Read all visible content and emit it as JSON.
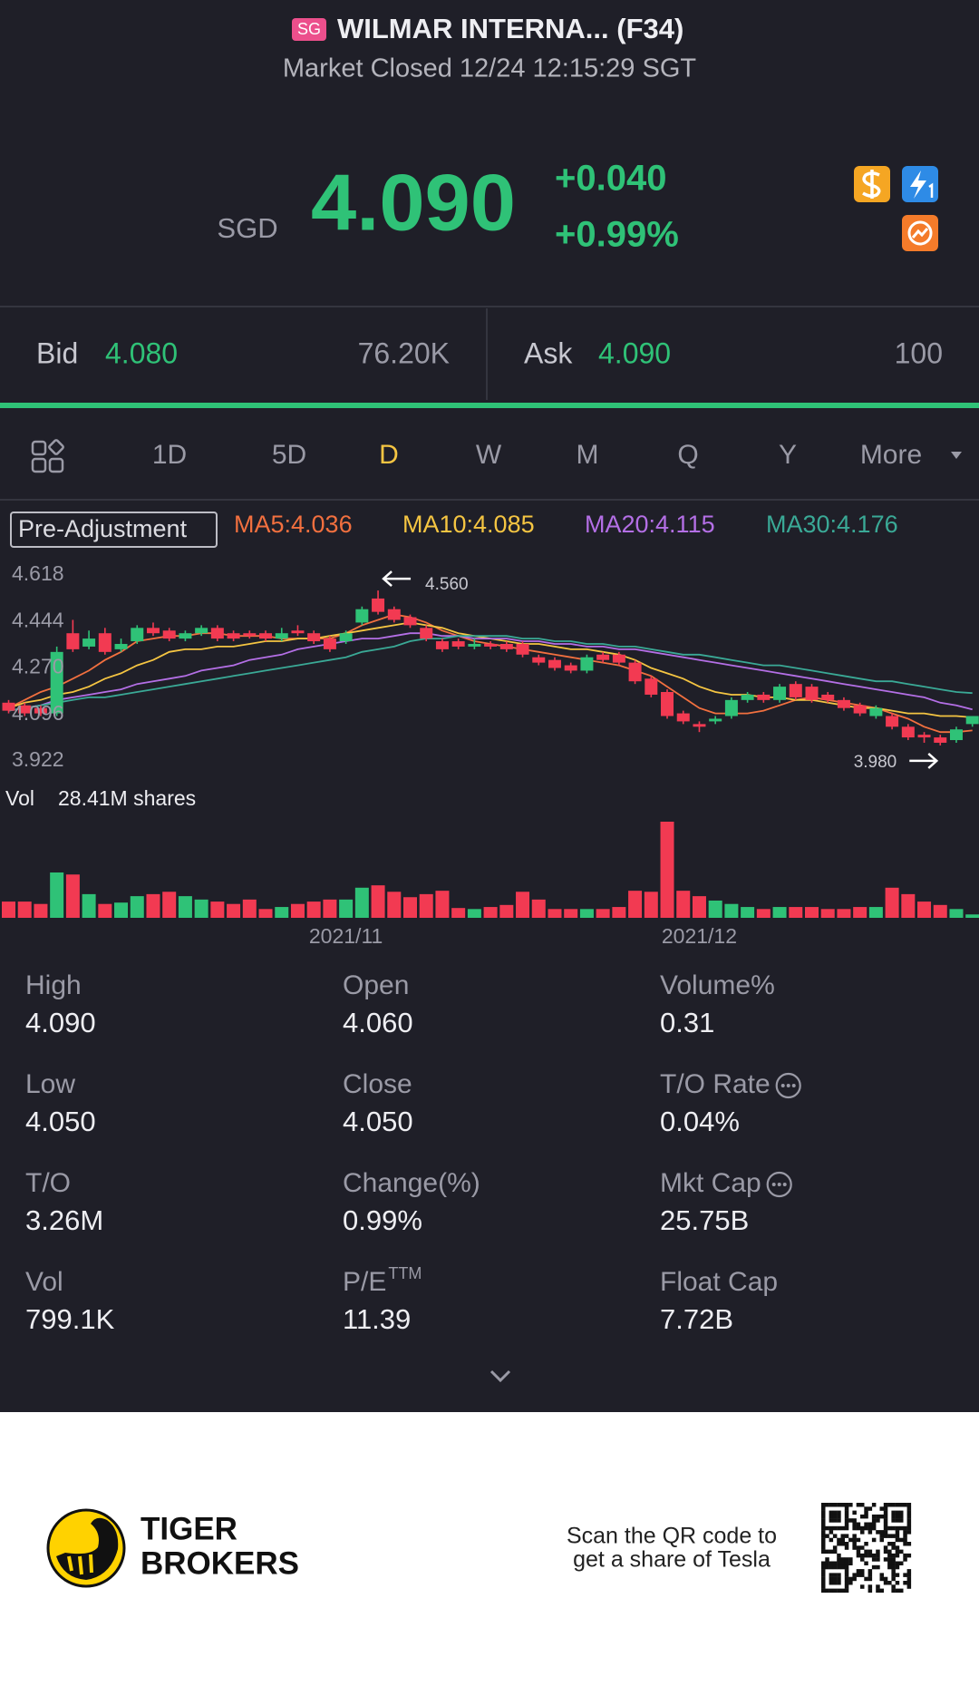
{
  "header": {
    "badge": "SG",
    "title": "WILMAR INTERNA... (F34)",
    "status": "Market Closed 12/24 12:15:29 SGT",
    "currency": "SGD",
    "price": "4.090",
    "change": "+0.040",
    "change_pct": "+0.99%"
  },
  "quote": {
    "bid_label": "Bid",
    "bid": "4.080",
    "bid_size": "76.20K",
    "ask_label": "Ask",
    "ask": "4.090",
    "ask_size": "100"
  },
  "tabs": [
    "1D",
    "5D",
    "D",
    "W",
    "M",
    "Q",
    "Y",
    "More"
  ],
  "active_tab": 2,
  "chart_data": {
    "type": "candlestick",
    "adjustment": "Pre-Adjustment",
    "up_color": "#2fc277",
    "down_color": "#f23a52",
    "grid": false,
    "ylim": [
      3.922,
      4.618
    ],
    "yticks": [
      4.618,
      4.444,
      {
        "value": 4.27,
        "label": "4.270"
      },
      4.096,
      3.922
    ],
    "categories": [
      null,
      null,
      null,
      null,
      null,
      null,
      null,
      null,
      null,
      null,
      null,
      null,
      null,
      null,
      null,
      null,
      null,
      null,
      null,
      null,
      null,
      "2021/11",
      null,
      null,
      null,
      null,
      null,
      null,
      null,
      null,
      null,
      null,
      null,
      null,
      null,
      null,
      null,
      null,
      null,
      null,
      null,
      null,
      null,
      "2021/12",
      null,
      null,
      null,
      null,
      null,
      null,
      null,
      null,
      null,
      null,
      null,
      null,
      null,
      null,
      null,
      null,
      null
    ],
    "open": [
      4.14,
      4.13,
      4.12,
      4.1,
      4.4,
      4.35,
      4.4,
      4.34,
      4.37,
      4.42,
      4.41,
      4.38,
      4.4,
      4.42,
      4.4,
      4.4,
      4.4,
      4.38,
      4.41,
      4.4,
      4.38,
      4.37,
      4.44,
      4.53,
      4.49,
      4.46,
      4.42,
      4.37,
      4.37,
      4.35,
      4.36,
      4.36,
      4.36,
      4.31,
      4.3,
      4.28,
      4.26,
      4.32,
      4.32,
      4.29,
      4.23,
      4.18,
      4.1,
      4.06,
      4.07,
      4.09,
      4.15,
      4.17,
      4.15,
      4.21,
      4.2,
      4.17,
      4.15,
      4.13,
      4.09,
      4.09,
      4.05,
      4.02,
      4.01,
      4.0,
      4.06
    ],
    "high": [
      4.15,
      4.14,
      4.13,
      4.35,
      4.45,
      4.41,
      4.42,
      4.38,
      4.43,
      4.44,
      4.42,
      4.41,
      4.43,
      4.43,
      4.41,
      4.41,
      4.41,
      4.42,
      4.43,
      4.41,
      4.39,
      4.41,
      4.5,
      4.56,
      4.5,
      4.47,
      4.43,
      4.38,
      4.38,
      4.38,
      4.37,
      4.37,
      4.37,
      4.32,
      4.31,
      4.29,
      4.32,
      4.33,
      4.33,
      4.3,
      4.24,
      4.19,
      4.11,
      4.07,
      4.09,
      4.16,
      4.18,
      4.18,
      4.21,
      4.22,
      4.21,
      4.18,
      4.16,
      4.14,
      4.13,
      4.1,
      4.06,
      4.03,
      4.02,
      4.05,
      4.09
    ],
    "low": [
      4.1,
      4.09,
      4.09,
      4.09,
      4.33,
      4.34,
      4.32,
      4.33,
      4.36,
      4.39,
      4.37,
      4.37,
      4.39,
      4.37,
      4.37,
      4.38,
      4.37,
      4.37,
      4.39,
      4.36,
      4.33,
      4.36,
      4.43,
      4.47,
      4.44,
      4.42,
      4.37,
      4.33,
      4.34,
      4.34,
      4.34,
      4.33,
      4.31,
      4.28,
      4.26,
      4.25,
      4.25,
      4.29,
      4.28,
      4.21,
      4.16,
      4.08,
      4.06,
      4.03,
      4.06,
      4.08,
      4.14,
      4.14,
      4.14,
      4.15,
      4.14,
      4.14,
      4.11,
      4.09,
      4.08,
      4.04,
      4.0,
      3.99,
      3.98,
      3.99,
      4.05
    ],
    "close": [
      4.11,
      4.1,
      4.1,
      4.33,
      4.34,
      4.38,
      4.33,
      4.36,
      4.42,
      4.4,
      4.38,
      4.4,
      4.42,
      4.38,
      4.38,
      4.39,
      4.38,
      4.4,
      4.4,
      4.37,
      4.34,
      4.4,
      4.49,
      4.48,
      4.45,
      4.43,
      4.38,
      4.34,
      4.35,
      4.36,
      4.35,
      4.34,
      4.32,
      4.29,
      4.27,
      4.26,
      4.31,
      4.3,
      4.29,
      4.22,
      4.17,
      4.09,
      4.07,
      4.05,
      4.08,
      4.15,
      4.17,
      4.15,
      4.2,
      4.16,
      4.15,
      4.15,
      4.12,
      4.1,
      4.12,
      4.05,
      4.01,
      4.01,
      3.99,
      4.04,
      4.09
    ],
    "series": [
      {
        "name": "MA5:4.036",
        "color": "#f2703f",
        "values": [
          4.12,
          4.15,
          4.18,
          4.2,
          4.23,
          4.26,
          4.3,
          4.33,
          4.37,
          4.38,
          4.39,
          4.39,
          4.4,
          4.4,
          4.39,
          4.39,
          4.39,
          4.38,
          4.38,
          4.38,
          4.38,
          4.4,
          4.43,
          4.45,
          4.47,
          4.46,
          4.44,
          4.41,
          4.39,
          4.37,
          4.36,
          4.35,
          4.34,
          4.33,
          4.32,
          4.31,
          4.3,
          4.29,
          4.28,
          4.26,
          4.24,
          4.2,
          4.16,
          4.12,
          4.1,
          4.1,
          4.1,
          4.11,
          4.13,
          4.15,
          4.16,
          4.15,
          4.14,
          4.13,
          4.12,
          4.1,
          4.08,
          4.05,
          4.03,
          4.03,
          4.036
        ]
      },
      {
        "name": "MA10:4.085",
        "color": "#f5c542",
        "values": [
          4.12,
          4.14,
          4.15,
          4.17,
          4.18,
          4.2,
          4.23,
          4.25,
          4.28,
          4.3,
          4.33,
          4.34,
          4.34,
          4.35,
          4.35,
          4.36,
          4.37,
          4.37,
          4.38,
          4.38,
          4.39,
          4.4,
          4.41,
          4.42,
          4.43,
          4.44,
          4.43,
          4.42,
          4.4,
          4.39,
          4.38,
          4.37,
          4.36,
          4.36,
          4.35,
          4.34,
          4.34,
          4.33,
          4.32,
          4.3,
          4.27,
          4.25,
          4.23,
          4.2,
          4.18,
          4.17,
          4.17,
          4.16,
          4.16,
          4.15,
          4.15,
          4.14,
          4.13,
          4.12,
          4.12,
          4.11,
          4.1,
          4.1,
          4.09,
          4.09,
          4.085
        ]
      },
      {
        "name": "MA20:4.115",
        "color": "#b46fe6",
        "values": [
          4.11,
          4.12,
          4.13,
          4.15,
          4.16,
          4.17,
          4.18,
          4.19,
          4.21,
          4.22,
          4.23,
          4.24,
          4.26,
          4.27,
          4.28,
          4.3,
          4.31,
          4.32,
          4.34,
          4.35,
          4.36,
          4.37,
          4.38,
          4.38,
          4.39,
          4.4,
          4.4,
          4.39,
          4.39,
          4.38,
          4.38,
          4.38,
          4.37,
          4.37,
          4.36,
          4.36,
          4.35,
          4.35,
          4.34,
          4.34,
          4.33,
          4.32,
          4.31,
          4.3,
          4.29,
          4.28,
          4.27,
          4.26,
          4.25,
          4.24,
          4.23,
          4.22,
          4.21,
          4.2,
          4.19,
          4.18,
          4.17,
          4.16,
          4.14,
          4.13,
          4.115
        ]
      },
      {
        "name": "MA30:4.176",
        "color": "#3aa996",
        "values": [
          4.11,
          4.12,
          4.13,
          4.14,
          4.15,
          4.16,
          4.16,
          4.17,
          4.18,
          4.19,
          4.2,
          4.21,
          4.22,
          4.23,
          4.24,
          4.25,
          4.26,
          4.27,
          4.28,
          4.29,
          4.3,
          4.31,
          4.33,
          4.34,
          4.35,
          4.37,
          4.38,
          4.38,
          4.39,
          4.39,
          4.39,
          4.39,
          4.38,
          4.38,
          4.37,
          4.37,
          4.36,
          4.36,
          4.35,
          4.35,
          4.34,
          4.33,
          4.32,
          4.32,
          4.31,
          4.3,
          4.29,
          4.28,
          4.28,
          4.27,
          4.26,
          4.25,
          4.24,
          4.23,
          4.22,
          4.22,
          4.21,
          4.2,
          4.19,
          4.18,
          4.176
        ]
      }
    ],
    "annotations": [
      {
        "index": 23,
        "value": 4.56,
        "label": "4.560",
        "side": "right"
      },
      {
        "index": 58,
        "value": 3.98,
        "label": "3.980",
        "side": "left"
      }
    ],
    "volume": {
      "label": "Vol",
      "max_label": "28.41M shares",
      "ylim": [
        0,
        28.41
      ],
      "values": [
        4.8,
        4.8,
        4.1,
        13.4,
        12.8,
        7.0,
        4.1,
        4.5,
        6.4,
        7.0,
        7.7,
        6.4,
        5.4,
        4.8,
        4.1,
        5.4,
        2.6,
        3.2,
        4.1,
        4.8,
        5.4,
        5.4,
        8.9,
        9.6,
        7.7,
        6.1,
        7.0,
        8.0,
        2.9,
        2.6,
        3.2,
        3.8,
        7.7,
        5.4,
        2.6,
        2.6,
        2.6,
        2.6,
        3.2,
        8.0,
        7.7,
        28.41,
        8.0,
        6.4,
        5.1,
        4.1,
        3.2,
        2.6,
        3.2,
        3.2,
        3.2,
        2.6,
        2.6,
        3.2,
        3.2,
        8.9,
        7.0,
        4.8,
        3.8,
        2.6,
        1.0
      ]
    }
  },
  "stats": [
    {
      "label": "High",
      "value": "4.090"
    },
    {
      "label": "Open",
      "value": "4.060"
    },
    {
      "label": "Volume%",
      "value": "0.31"
    },
    {
      "label": "Low",
      "value": "4.050"
    },
    {
      "label": "Close",
      "value": "4.050"
    },
    {
      "label": "T/O Rate",
      "value": "0.04%",
      "info": true
    },
    {
      "label": "T/O",
      "value": "3.26M"
    },
    {
      "label": "Change(%)",
      "value": "0.99%"
    },
    {
      "label": "Mkt Cap",
      "value": "25.75B",
      "info": true
    },
    {
      "label": "Vol",
      "value": "799.1K"
    },
    {
      "label": "P/E",
      "sup": "TTM",
      "value": "11.39"
    },
    {
      "label": "Float Cap",
      "value": "7.72B"
    }
  ],
  "footer": {
    "brand_line1": "TIGER",
    "brand_line2": "BROKERS",
    "promo_line1": "Scan the QR code to",
    "promo_line2": "get a share of Tesla"
  }
}
